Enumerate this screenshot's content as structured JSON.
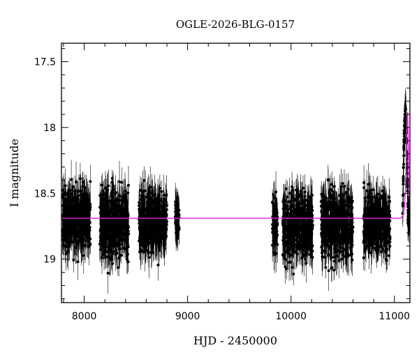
{
  "chart_data": {
    "type": "scatter",
    "title": "OGLE-2026-BLG-0157",
    "xlabel": "HJD - 2450000",
    "ylabel": "I magnitude",
    "xlim": [
      7780,
      11150
    ],
    "ylim": [
      19.33,
      17.36
    ],
    "y_inverted": true,
    "xticks": [
      8000,
      9000,
      10000,
      11000
    ],
    "yticks": [
      17.5,
      18,
      18.5,
      19
    ],
    "ytick_labels": [
      "17.5",
      "18",
      "18.5",
      "19"
    ],
    "grid": false,
    "colors": {
      "points": "#000000",
      "model": "#dd22dd"
    },
    "series": [
      {
        "kind": "observations",
        "error_bars": true,
        "baseline_mag": 18.68,
        "seasons": [
          {
            "x_range": [
              7790,
              8060
            ],
            "mag_range": [
              18.35,
              19.05
            ]
          },
          {
            "x_range": [
              8150,
              8430
            ],
            "mag_range": [
              18.35,
              19.1
            ]
          },
          {
            "x_range": [
              8530,
              8800
            ],
            "mag_range": [
              18.38,
              19.05
            ]
          },
          {
            "x_range": [
              8880,
              8920
            ],
            "mag_range": [
              18.5,
              18.85
            ]
          },
          {
            "x_range": [
              9820,
              9870
            ],
            "mag_range": [
              18.4,
              19.05
            ]
          },
          {
            "x_range": [
              9920,
              10210
            ],
            "mag_range": [
              18.4,
              19.1
            ]
          },
          {
            "x_range": [
              10290,
              10600
            ],
            "mag_range": [
              18.35,
              19.15
            ]
          },
          {
            "x_range": [
              10700,
              10960
            ],
            "mag_range": [
              18.4,
              19.05
            ]
          },
          {
            "x_range": [
              11080,
              11150
            ],
            "mag_range": [
              17.85,
              18.8
            ]
          }
        ]
      },
      {
        "kind": "model",
        "points": [
          {
            "x": 7780,
            "y": 18.69
          },
          {
            "x": 11060,
            "y": 18.69
          },
          {
            "x": 11080,
            "y": 18.67
          },
          {
            "x": 11095,
            "y": 18.62
          },
          {
            "x": 11105,
            "y": 18.5
          },
          {
            "x": 11112,
            "y": 18.3
          },
          {
            "x": 11118,
            "y": 18.05
          },
          {
            "x": 11123,
            "y": 17.9
          },
          {
            "x": 11128,
            "y": 17.88
          },
          {
            "x": 11133,
            "y": 18.05
          },
          {
            "x": 11138,
            "y": 18.3
          },
          {
            "x": 11143,
            "y": 18.5
          },
          {
            "x": 11150,
            "y": 18.6
          }
        ]
      }
    ]
  }
}
